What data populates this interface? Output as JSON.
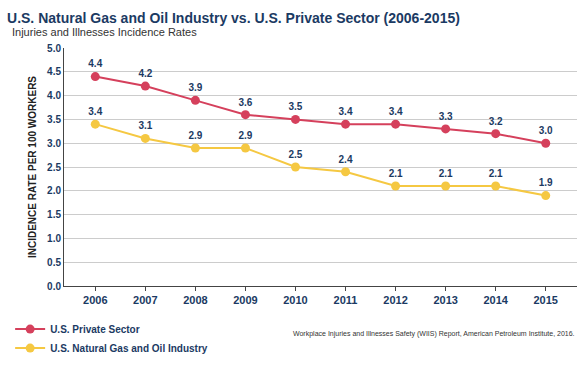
{
  "chart_data": {
    "type": "line",
    "title": "U.S. Natural Gas and Oil Industry vs. U.S. Private Sector (2006-2015)",
    "subtitle": "Injuries and Illnesses Incidence Rates",
    "y_label": "INCIDENCE RATE PER 100 WORKERS",
    "categories": [
      "2006",
      "2007",
      "2008",
      "2009",
      "2010",
      "2011",
      "2012",
      "2013",
      "2014",
      "2015"
    ],
    "series": [
      {
        "name": "U.S. Private Sector",
        "color": "#d5405c",
        "marker": "circle",
        "values": [
          4.4,
          4.2,
          3.9,
          3.6,
          3.5,
          3.4,
          3.4,
          3.3,
          3.2,
          3.0
        ],
        "value_labels": [
          "4.4",
          "4.2",
          "3.9",
          "3.6",
          "3.5",
          "3.4",
          "3.4",
          "3.3",
          "3.2",
          "3.0"
        ]
      },
      {
        "name": "U.S. Natural Gas and Oil Industry",
        "color": "#f5c842",
        "marker": "circle",
        "values": [
          3.4,
          3.1,
          2.9,
          2.9,
          2.5,
          2.4,
          2.1,
          2.1,
          2.1,
          1.9
        ]
      }
    ],
    "ylim": [
      0,
      5
    ],
    "yticks": [
      {
        "value": 0,
        "label": "0.0"
      },
      0.5,
      {
        "value": 1,
        "label": "1.0"
      },
      1.5,
      {
        "value": 2,
        "label": "2.0"
      },
      2.5,
      {
        "value": 3,
        "label": "3.0"
      },
      3.5,
      {
        "value": 4,
        "label": "4.0"
      },
      4.5,
      {
        "value": 5,
        "label": "5.0"
      }
    ],
    "grid": true,
    "data_labels": true,
    "legend": "bottom",
    "annotations": [
      "Workplace Injuries and Illnesses Safety (WIIS) Report, American Petroleum Institute, 2016."
    ]
  }
}
